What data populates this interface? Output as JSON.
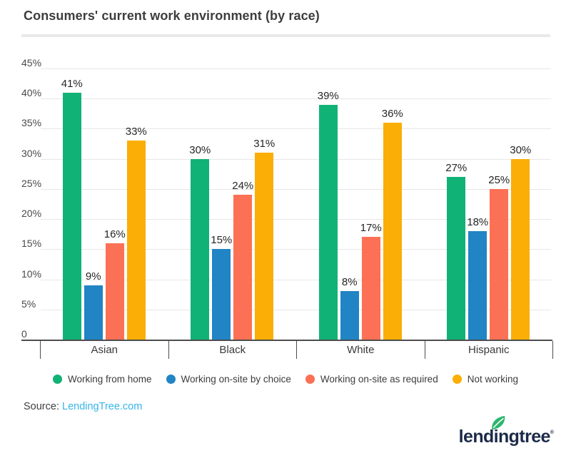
{
  "title": "Consumers' current work environment (by race)",
  "chart_data": {
    "type": "bar",
    "categories": [
      "Asian",
      "Black",
      "White",
      "Hispanic"
    ],
    "series": [
      {
        "name": "Working from home",
        "color": "#11b276",
        "values": [
          41,
          30,
          39,
          27
        ]
      },
      {
        "name": "Working on-site by choice",
        "color": "#2184c5",
        "values": [
          9,
          15,
          8,
          18
        ]
      },
      {
        "name": "Working on-site as required",
        "color": "#fc7055",
        "values": [
          16,
          24,
          17,
          25
        ]
      },
      {
        "name": "Not working",
        "color": "#faae06",
        "values": [
          33,
          31,
          36,
          30
        ]
      }
    ],
    "value_suffix": "%",
    "y_ticks": [
      {
        "value": 45,
        "label": "45%"
      },
      {
        "value": 40,
        "label": "40%"
      },
      {
        "value": 35,
        "label": "35%"
      },
      {
        "value": 30,
        "label": "30%"
      },
      {
        "value": 25,
        "label": "25%"
      },
      {
        "value": 20,
        "label": "20%"
      },
      {
        "value": 15,
        "label": "15%"
      },
      {
        "value": 10,
        "label": "10%"
      },
      {
        "value": 5,
        "label": "5%"
      },
      {
        "value": 0,
        "label": "0"
      }
    ],
    "ylim": [
      0,
      45
    ],
    "grid": true,
    "legend_position": "bottom"
  },
  "source": {
    "label": "Source:",
    "link_text": "LendingTree.com",
    "link_color": "#35b4e7"
  },
  "logo": {
    "text": "lendingtree",
    "registered_mark": "®",
    "text_color": "#1c2a48",
    "leaf_color": "#2cb56c"
  }
}
